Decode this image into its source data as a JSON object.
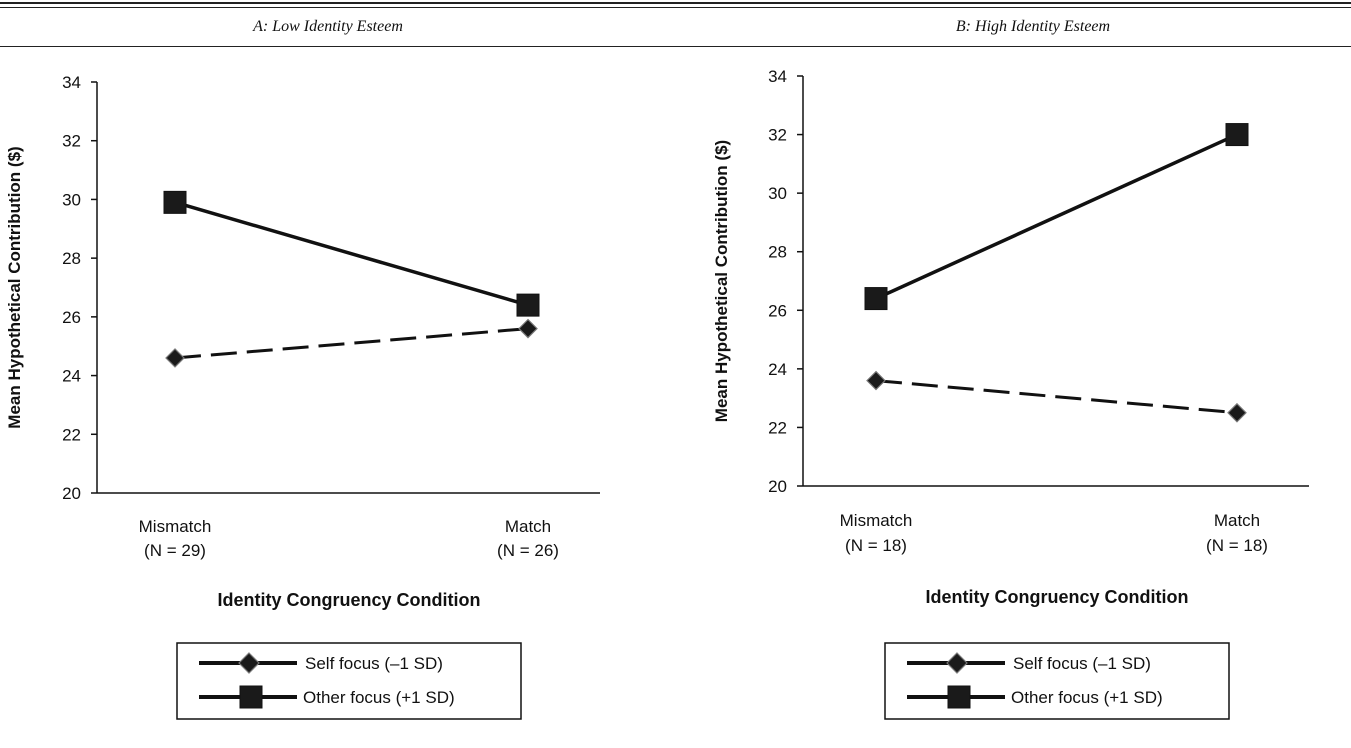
{
  "chart_data": [
    {
      "type": "line",
      "title": "A: Low Identity Esteem",
      "xlabel": "Identity Congruency Condition",
      "ylabel": "Mean Hypothetical Contribution ($)",
      "categories": [
        "Mismatch",
        "Match"
      ],
      "category_sublabels": [
        "(N = 29)",
        "(N = 26)"
      ],
      "ylim": [
        20,
        34
      ],
      "yticks": [
        20,
        22,
        24,
        26,
        28,
        30,
        32,
        34
      ],
      "grid": false,
      "legend_position": "bottom",
      "series": [
        {
          "name": "Self focus (–1 SD)",
          "values": [
            24.6,
            25.6
          ],
          "marker": "diamond",
          "line": "dashed"
        },
        {
          "name": "Other focus (+1 SD)",
          "values": [
            29.9,
            26.4
          ],
          "marker": "square",
          "line": "solid"
        }
      ]
    },
    {
      "type": "line",
      "title": "B: High Identity Esteem",
      "xlabel": "Identity Congruency Condition",
      "ylabel": "Mean Hypothetical Contribution ($)",
      "categories": [
        "Mismatch",
        "Match"
      ],
      "category_sublabels": [
        "(N = 18)",
        "(N = 18)"
      ],
      "ylim": [
        20,
        34
      ],
      "yticks": [
        20,
        22,
        24,
        26,
        28,
        30,
        32,
        34
      ],
      "grid": false,
      "legend_position": "bottom",
      "series": [
        {
          "name": "Self focus (–1 SD)",
          "values": [
            23.6,
            22.5
          ],
          "marker": "diamond",
          "line": "dashed"
        },
        {
          "name": "Other focus (+1 SD)",
          "values": [
            26.4,
            32.0
          ],
          "marker": "square",
          "line": "solid"
        }
      ]
    }
  ],
  "colors": {
    "ink": "#111111",
    "marker_fill": "#1a1a1a"
  }
}
